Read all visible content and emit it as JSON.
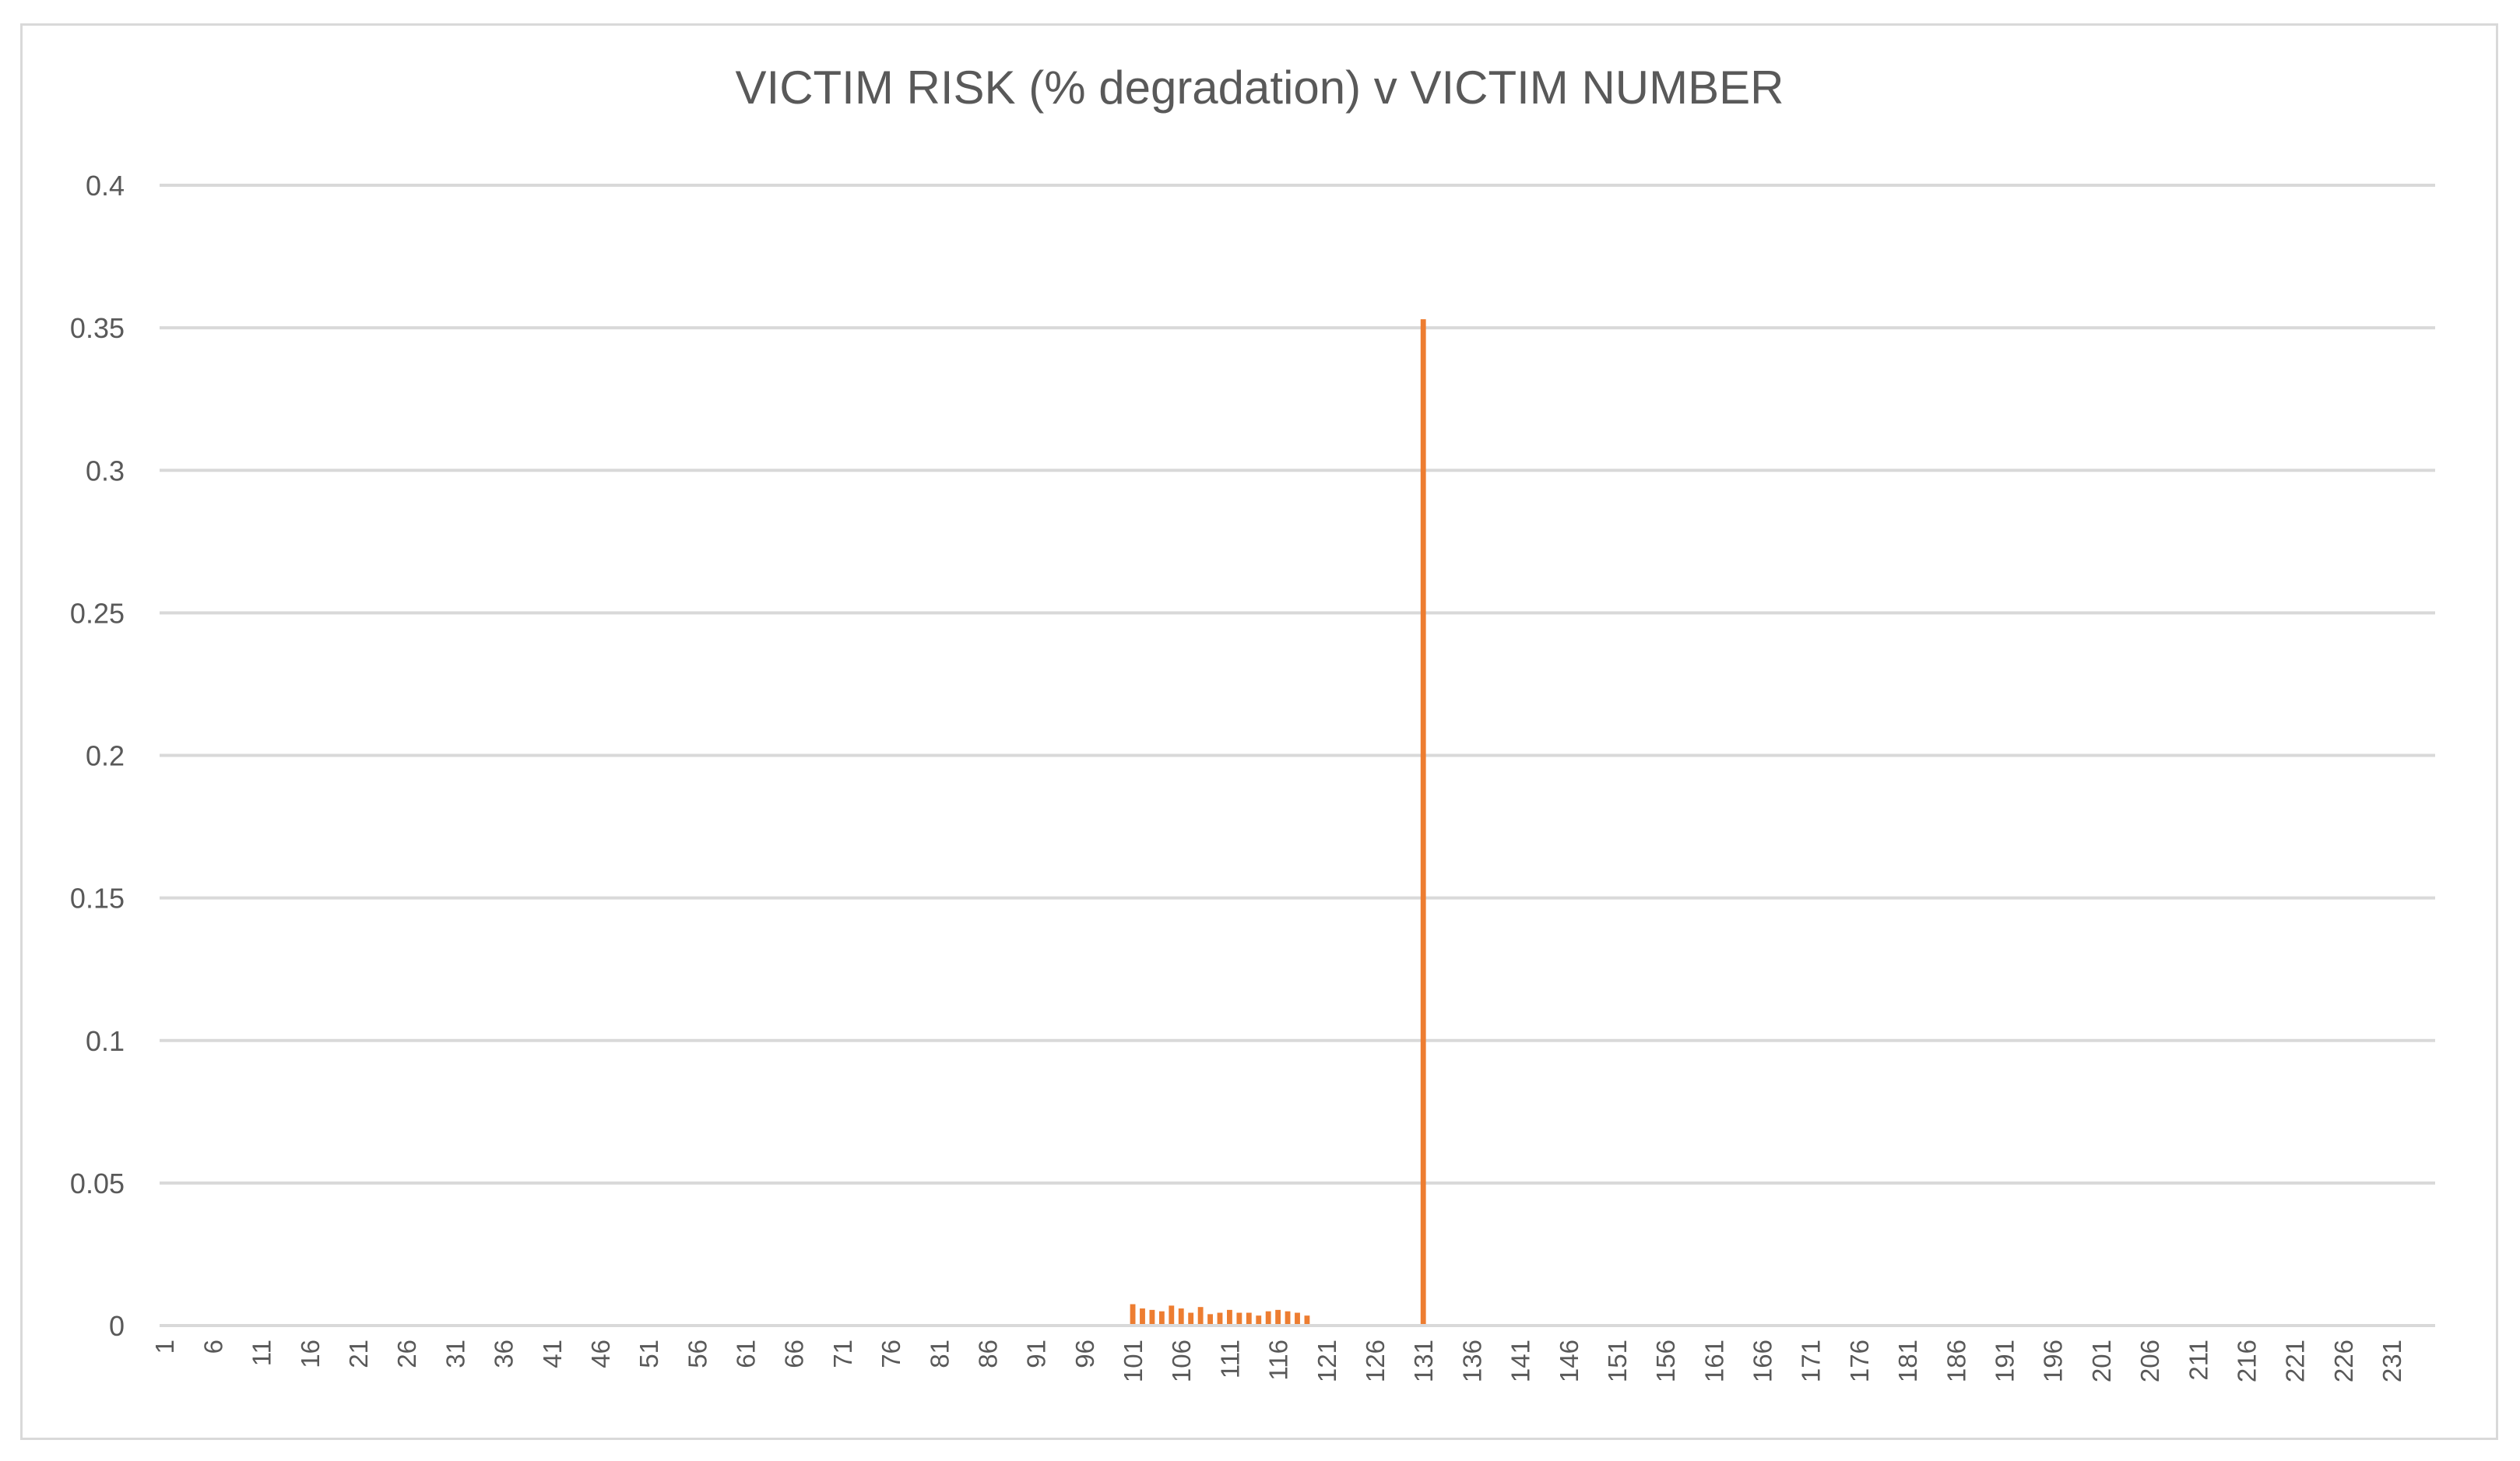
{
  "chart_data": {
    "type": "bar",
    "title": "VICTIM RISK (% degradation) v VICTIM NUMBER",
    "xlabel": "",
    "ylabel": "",
    "ylim": [
      0,
      0.4
    ],
    "yticks": [
      "0",
      "0.05",
      "0.1",
      "0.15",
      "0.2",
      "0.25",
      "0.3",
      "0.35",
      "0.4"
    ],
    "x_range": [
      1,
      235
    ],
    "x_tick_labels": [
      "1",
      "6",
      "11",
      "16",
      "21",
      "26",
      "31",
      "36",
      "41",
      "46",
      "51",
      "56",
      "61",
      "66",
      "71",
      "76",
      "81",
      "86",
      "91",
      "96",
      "101",
      "106",
      "111",
      "116",
      "121",
      "126",
      "131",
      "136",
      "141",
      "146",
      "151",
      "156",
      "161",
      "166",
      "171",
      "176",
      "181",
      "186",
      "191",
      "196",
      "201",
      "206",
      "211",
      "216",
      "221",
      "226",
      "231"
    ],
    "grid": true,
    "legend": "none",
    "bar_color": "#ed7d31",
    "grid_color": "#d9d9d9",
    "baseline_bars": {
      "from": 1,
      "to": 188,
      "value": 0.0005
    },
    "series": [
      {
        "points": [
          [
            101,
            0.0075
          ],
          [
            102,
            0.006
          ],
          [
            103,
            0.0055
          ],
          [
            104,
            0.005
          ],
          [
            105,
            0.007
          ],
          [
            106,
            0.006
          ],
          [
            107,
            0.0045
          ],
          [
            108,
            0.0065
          ],
          [
            109,
            0.004
          ],
          [
            110,
            0.0045
          ],
          [
            111,
            0.0055
          ],
          [
            112,
            0.0045
          ],
          [
            113,
            0.0045
          ],
          [
            114,
            0.0035
          ],
          [
            115,
            0.005
          ],
          [
            116,
            0.0055
          ],
          [
            117,
            0.005
          ],
          [
            118,
            0.0045
          ],
          [
            119,
            0.0035
          ],
          [
            131,
            0.353
          ]
        ]
      }
    ]
  }
}
